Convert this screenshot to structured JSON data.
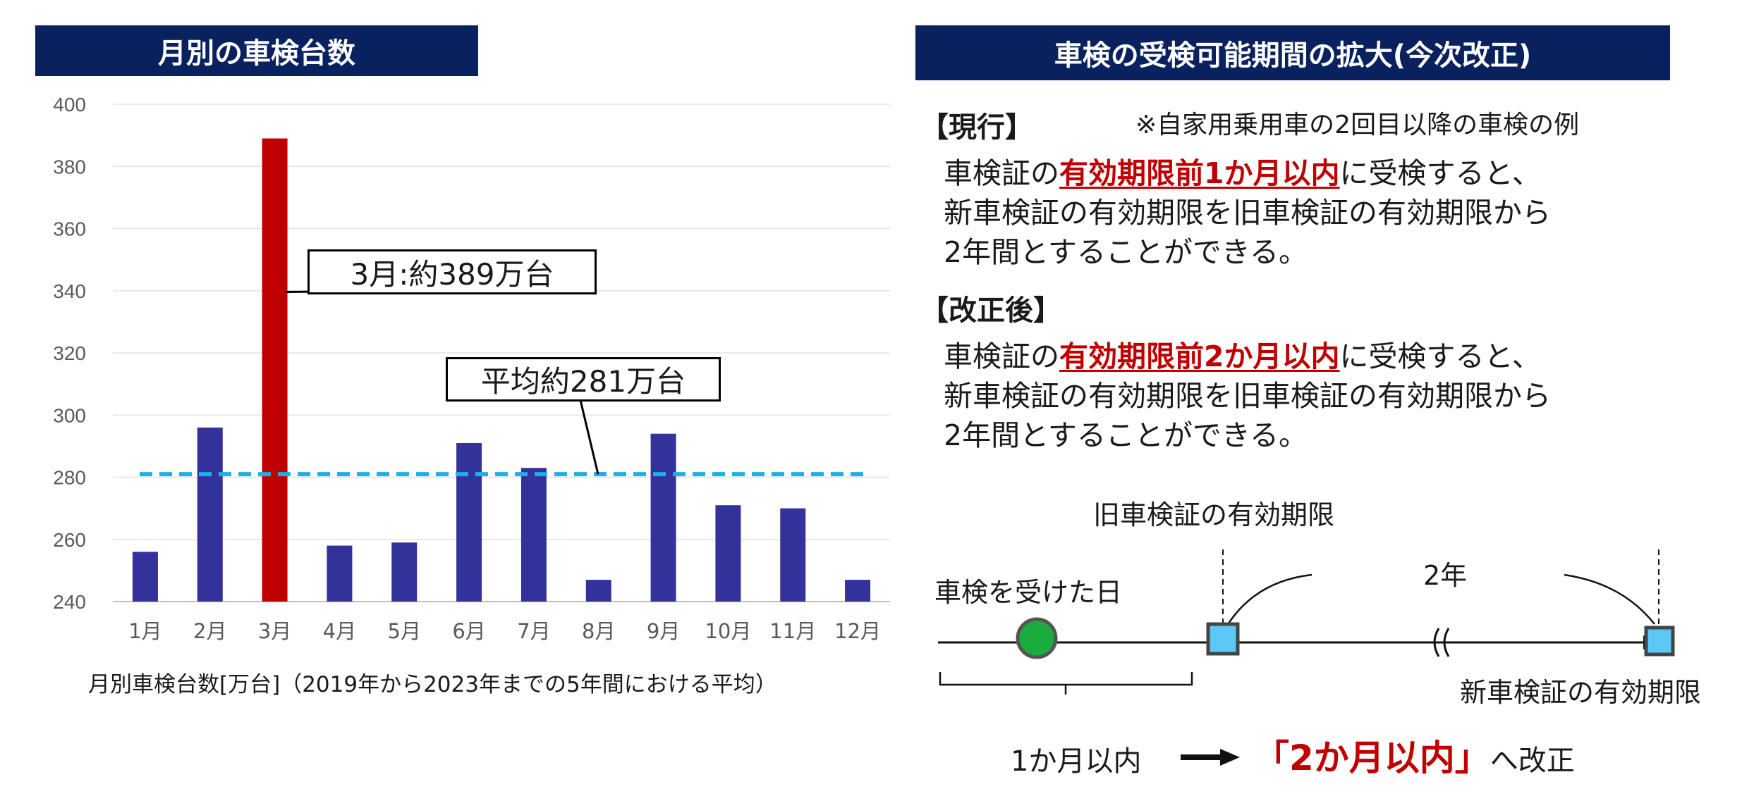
{
  "left_panel": {
    "banner_title": "月別の車検台数",
    "caption": "月別車検台数[万台]（2019年から2023年までの5年間における平均）",
    "callouts": {
      "march": "3月:約389万台",
      "average": "平均約281万台"
    }
  },
  "chart_data": {
    "type": "bar",
    "title": "月別の車検台数",
    "categories": [
      "1月",
      "2月",
      "3月",
      "4月",
      "5月",
      "6月",
      "7月",
      "8月",
      "9月",
      "10月",
      "11月",
      "12月"
    ],
    "series": [
      {
        "values": [
          256,
          296,
          389,
          258,
          259,
          291,
          283,
          247,
          294,
          271,
          270,
          247
        ]
      }
    ],
    "reference_line": {
      "value": 281,
      "style": "dashed"
    },
    "highlight_category": "3月",
    "ylim": [
      240,
      400
    ],
    "yticks": [
      240,
      260,
      280,
      300,
      320,
      340,
      360,
      380,
      400
    ],
    "grid": true,
    "colors": {
      "bar": "#33329a",
      "highlight": "#c00000",
      "reference": "#1eaee8"
    }
  },
  "right_panel": {
    "banner_title": "車検の受検可能期間の拡大(今次改正)",
    "current": {
      "label": "【現行】",
      "note": "※自家用乗用車の2回目以降の車検の例",
      "line1_pre": "車検証の",
      "line1_highlight": "有効期限前1か月以内",
      "line1_post": "に受検すると、",
      "line2": "新車検証の有効期限を旧車検証の有効期限から",
      "line3": "2年間とすることができる。"
    },
    "revised": {
      "label": "【改正後】",
      "line1_pre": "車検証の",
      "line1_highlight": "有効期限前2か月以内",
      "line1_post": "に受検すると、",
      "line2": "新車検証の有効期限を旧車検証の有効期限から",
      "line3": "2年間とすることができる。"
    },
    "timeline": {
      "old_expiry_label": "旧車検証の有効期限",
      "inspection_day_label": "車検を受けた日",
      "two_years_label": "2年",
      "new_expiry_label": "新車検証の有効期限",
      "bottom_old": "1か月以内",
      "bottom_new": "「2か月以内」",
      "bottom_suffix": "へ改正"
    }
  },
  "colors": {
    "banner_bg": "#0a2160",
    "accent_red": "#c00000",
    "marker_green": "#1aac3c",
    "marker_blue": "#5bc8f5"
  }
}
